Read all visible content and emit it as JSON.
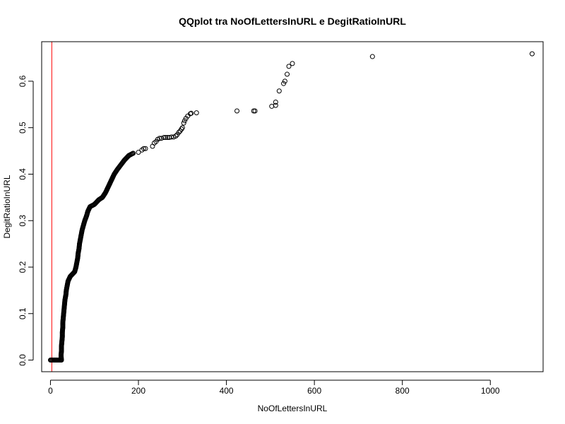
{
  "chart_data": {
    "type": "scatter",
    "title": "QQplot tra NoOfLettersInURL e DegitRatioInURL",
    "xlabel": "NoOfLettersInURL",
    "ylabel": "DegitRatioInURL",
    "xlim": [
      -20,
      1120
    ],
    "ylim": [
      -0.025,
      0.685
    ],
    "xticks": [
      0,
      200,
      400,
      600,
      800,
      1000
    ],
    "yticks": [
      0.0,
      0.1,
      0.2,
      0.3,
      0.4,
      0.5,
      0.6
    ],
    "xtick_labels": [
      "0",
      "200",
      "400",
      "600",
      "800",
      "1000"
    ],
    "ytick_labels": [
      "0.0",
      "0.1",
      "0.2",
      "0.3",
      "0.4",
      "0.5",
      "0.6"
    ],
    "grid": false,
    "reference_line": {
      "orientation": "vertical",
      "x": 3,
      "color": "#ff0000"
    },
    "marker": {
      "shape": "open-circle",
      "color": "#000000"
    },
    "points_dense": [
      [
        0,
        0.0
      ],
      [
        5,
        0.0
      ],
      [
        10,
        0.0
      ],
      [
        15,
        0.0
      ],
      [
        20,
        0.0
      ],
      [
        23,
        0.0
      ],
      [
        25,
        0.0
      ],
      [
        24,
        0.01
      ],
      [
        25,
        0.02
      ],
      [
        25,
        0.03
      ],
      [
        26,
        0.04
      ],
      [
        27,
        0.05
      ],
      [
        27,
        0.06
      ],
      [
        28,
        0.07
      ],
      [
        28,
        0.08
      ],
      [
        29,
        0.09
      ],
      [
        30,
        0.1
      ],
      [
        31,
        0.11
      ],
      [
        32,
        0.12
      ],
      [
        33,
        0.13
      ],
      [
        35,
        0.14
      ],
      [
        36,
        0.15
      ],
      [
        38,
        0.16
      ],
      [
        40,
        0.17
      ],
      [
        45,
        0.18
      ],
      [
        50,
        0.185
      ],
      [
        55,
        0.19
      ],
      [
        58,
        0.2
      ],
      [
        60,
        0.21
      ],
      [
        62,
        0.22
      ],
      [
        63,
        0.23
      ],
      [
        65,
        0.24
      ],
      [
        66,
        0.25
      ],
      [
        68,
        0.26
      ],
      [
        70,
        0.27
      ],
      [
        72,
        0.28
      ],
      [
        75,
        0.29
      ],
      [
        78,
        0.3
      ],
      [
        82,
        0.31
      ],
      [
        85,
        0.32
      ],
      [
        90,
        0.33
      ],
      [
        100,
        0.335
      ],
      [
        105,
        0.34
      ],
      [
        110,
        0.345
      ],
      [
        118,
        0.35
      ],
      [
        125,
        0.36
      ],
      [
        130,
        0.37
      ],
      [
        135,
        0.38
      ],
      [
        140,
        0.39
      ],
      [
        145,
        0.4
      ],
      [
        152,
        0.41
      ],
      [
        160,
        0.42
      ],
      [
        168,
        0.43
      ],
      [
        178,
        0.44
      ],
      [
        188,
        0.445
      ]
    ],
    "points": [
      [
        200,
        0.447
      ],
      [
        208,
        0.452
      ],
      [
        212,
        0.455
      ],
      [
        216,
        0.455
      ],
      [
        232,
        0.46
      ],
      [
        236,
        0.467
      ],
      [
        240,
        0.47
      ],
      [
        244,
        0.475
      ],
      [
        248,
        0.477
      ],
      [
        252,
        0.477
      ],
      [
        258,
        0.479
      ],
      [
        262,
        0.479
      ],
      [
        266,
        0.479
      ],
      [
        270,
        0.479
      ],
      [
        275,
        0.48
      ],
      [
        280,
        0.48
      ],
      [
        285,
        0.482
      ],
      [
        288,
        0.485
      ],
      [
        292,
        0.49
      ],
      [
        295,
        0.493
      ],
      [
        298,
        0.497
      ],
      [
        300,
        0.5
      ],
      [
        303,
        0.51
      ],
      [
        305,
        0.515
      ],
      [
        308,
        0.52
      ],
      [
        312,
        0.525
      ],
      [
        318,
        0.53
      ],
      [
        320,
        0.531
      ],
      [
        332,
        0.532
      ],
      [
        424,
        0.536
      ],
      [
        462,
        0.536
      ],
      [
        465,
        0.536
      ],
      [
        503,
        0.546
      ],
      [
        512,
        0.548
      ],
      [
        512,
        0.555
      ],
      [
        520,
        0.579
      ],
      [
        530,
        0.595
      ],
      [
        533,
        0.6
      ],
      [
        538,
        0.615
      ],
      [
        542,
        0.632
      ],
      [
        550,
        0.638
      ],
      [
        732,
        0.653
      ],
      [
        1095,
        0.659
      ]
    ]
  }
}
